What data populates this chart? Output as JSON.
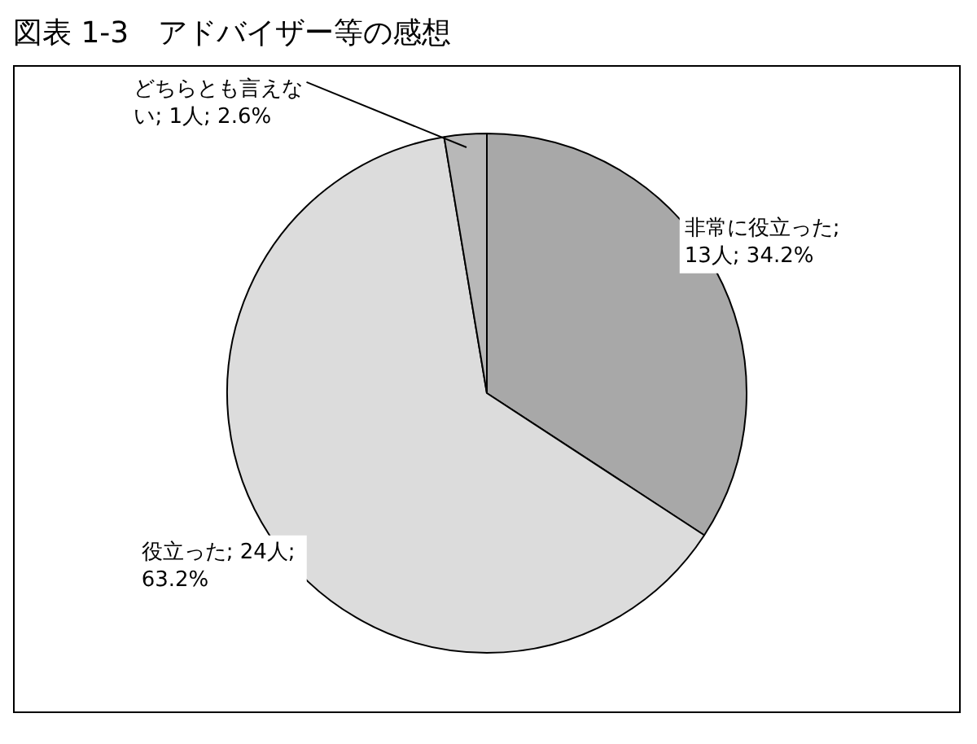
{
  "chart_data": {
    "type": "pie",
    "title": "図表 1-3　アドバイザー等の感想",
    "categories": [
      "非常に役立った",
      "役立った",
      "どちらとも言えない"
    ],
    "values": [
      13,
      24,
      1
    ],
    "colors": [
      "#a8a8a8",
      "#dcdcdc",
      "#b8b8b8"
    ],
    "value_labels": [
      "; 13人; 34.2%",
      "; 24人; 63.2%",
      "; 1人; 2.6%"
    ],
    "legend": false
  }
}
